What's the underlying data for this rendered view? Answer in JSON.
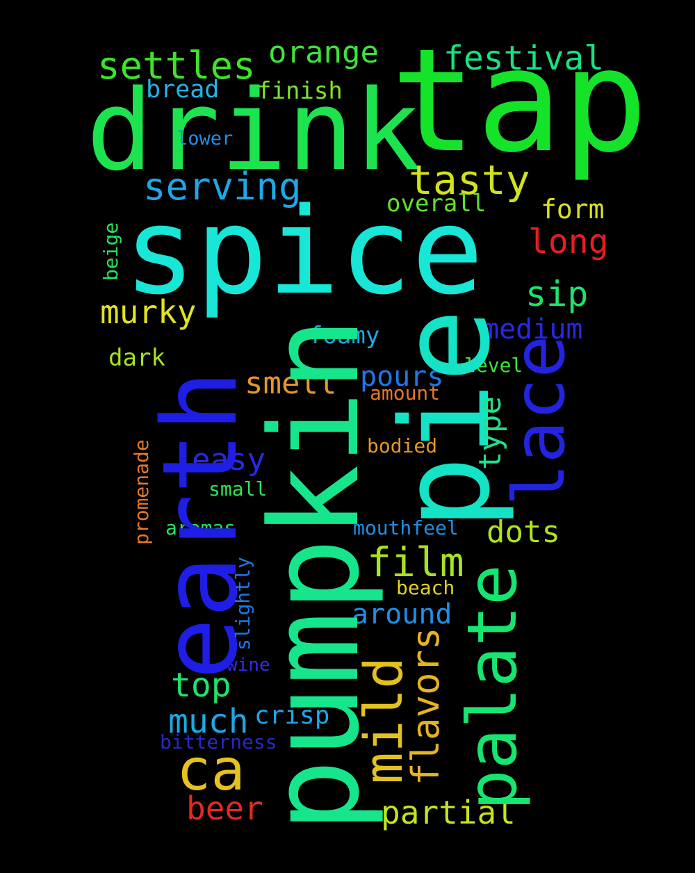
{
  "words": {
    "tap": {
      "text": "tap",
      "color": "#14e32a"
    },
    "drink": {
      "text": "drink",
      "color": "#1de34f"
    },
    "spice": {
      "text": "spice",
      "color": "#18e6d6"
    },
    "pumpkin": {
      "text": "pumpkin",
      "color": "#16e58c"
    },
    "pie": {
      "text": "pie",
      "color": "#14e3c5"
    },
    "earth": {
      "text": "earth",
      "color": "#1e1ee6"
    },
    "palate": {
      "text": "palate",
      "color": "#16e56f"
    },
    "lace": {
      "text": "lace",
      "color": "#2323e0"
    },
    "settles": {
      "text": "settles",
      "color": "#3ee32a"
    },
    "orange": {
      "text": "orange",
      "color": "#3ee33a"
    },
    "festival": {
      "text": "festival",
      "color": "#16e383"
    },
    "bread": {
      "text": "bread",
      "color": "#22b5e6"
    },
    "finish": {
      "text": "finish",
      "color": "#7fe32a"
    },
    "lower": {
      "text": "lower",
      "color": "#1e90e6"
    },
    "serving": {
      "text": "serving",
      "color": "#1ea8e6"
    },
    "tasty": {
      "text": "tasty",
      "color": "#d2e31e"
    },
    "overall": {
      "text": "overall",
      "color": "#5fe32a"
    },
    "form": {
      "text": "form",
      "color": "#d9e31e"
    },
    "long": {
      "text": "long",
      "color": "#e61e1e"
    },
    "beige": {
      "text": "beige",
      "color": "#2ae35a"
    },
    "murky": {
      "text": "murky",
      "color": "#e3e31e"
    },
    "sip": {
      "text": "sip",
      "color": "#1ee36c"
    },
    "medium": {
      "text": "medium",
      "color": "#2828e6"
    },
    "foamy": {
      "text": "foamy",
      "color": "#1ea8e6"
    },
    "dark": {
      "text": "dark",
      "color": "#a8e31e"
    },
    "level": {
      "text": "level",
      "color": "#3ee33a"
    },
    "smell": {
      "text": "smell",
      "color": "#e6962a"
    },
    "pours": {
      "text": "pours",
      "color": "#1e78e6"
    },
    "amount": {
      "text": "amount",
      "color": "#e6782a"
    },
    "type": {
      "text": "type",
      "color": "#1ee38c"
    },
    "easy": {
      "text": "easy",
      "color": "#2828e6"
    },
    "bodied": {
      "text": "bodied",
      "color": "#e6962a"
    },
    "promenade": {
      "text": "promenade",
      "color": "#e6782a"
    },
    "small": {
      "text": "small",
      "color": "#2ae35a"
    },
    "aromas": {
      "text": "aromas",
      "color": "#2ae35a"
    },
    "mouthfeel": {
      "text": "mouthfeel",
      "color": "#1e90e6"
    },
    "dots": {
      "text": "dots",
      "color": "#b0e31e"
    },
    "film": {
      "text": "film",
      "color": "#a8e31e"
    },
    "slightly": {
      "text": "slightly",
      "color": "#1e78e6"
    },
    "beach": {
      "text": "beach",
      "color": "#e3d21e"
    },
    "mild": {
      "text": "mild",
      "color": "#e3c21e"
    },
    "around": {
      "text": "around",
      "color": "#1e90e6"
    },
    "flavors": {
      "text": "flavors",
      "color": "#e6b41e"
    },
    "wine": {
      "text": "wine",
      "color": "#3a28e6"
    },
    "top": {
      "text": "top",
      "color": "#1ee36c"
    },
    "much": {
      "text": "much",
      "color": "#1ea8e6"
    },
    "crisp": {
      "text": "crisp",
      "color": "#1ea8e6"
    },
    "bitterness": {
      "text": "bitterness",
      "color": "#2828c8"
    },
    "ca": {
      "text": "ca",
      "color": "#e6c21e"
    },
    "beer": {
      "text": "beer",
      "color": "#e6281e"
    },
    "partial": {
      "text": "partial",
      "color": "#c8e31e"
    }
  },
  "background_color": "#000000"
}
